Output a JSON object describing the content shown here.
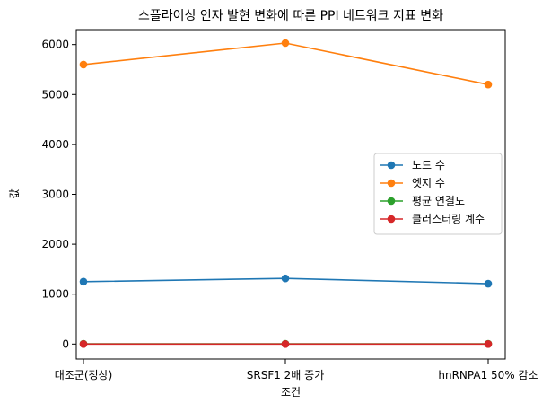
{
  "chart_data": {
    "type": "line",
    "title": "스플라이싱 인자 발현 변화에 따른 PPI 네트워크 지표 변화",
    "xlabel": "조건",
    "ylabel": "값",
    "categories": [
      "대조군(정상)",
      "SRSF1 2배 증가",
      "hnRNPA1 50% 감소"
    ],
    "ylim": [
      -300,
      6300
    ],
    "yticks": [
      0,
      1000,
      2000,
      3000,
      4000,
      5000,
      6000
    ],
    "grid": false,
    "legend_position": "center-right",
    "series": [
      {
        "name": "노드 수",
        "color": "#1f77b4",
        "values": [
          1250,
          1315,
          1210
        ]
      },
      {
        "name": "엣지 수",
        "color": "#ff7f0e",
        "values": [
          5600,
          6030,
          5200
        ]
      },
      {
        "name": "평균 연결도",
        "color": "#2ca02c",
        "values": [
          4.5,
          4.6,
          4.3
        ]
      },
      {
        "name": "클러스터링 계수",
        "color": "#d62728",
        "values": [
          0.3,
          0.32,
          0.28
        ]
      }
    ]
  }
}
